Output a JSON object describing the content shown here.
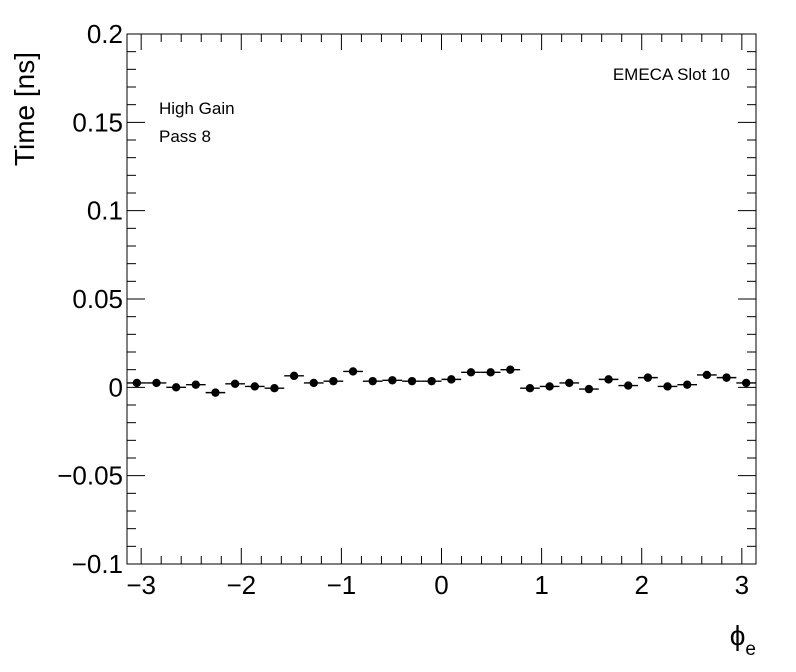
{
  "chart_data": {
    "type": "scatter",
    "ylabel": "Time [ns]",
    "xlabel": {
      "main": "ϕ",
      "sub": "e"
    },
    "xlim": [
      -3.1416,
      3.1416
    ],
    "ylim": [
      -0.1,
      0.2
    ],
    "xticks": [
      {
        "value": -3,
        "label": "−3"
      },
      {
        "value": -2,
        "label": "−2"
      },
      {
        "value": -1,
        "label": "−1"
      },
      {
        "value": 0,
        "label": "0"
      },
      {
        "value": 1,
        "label": "1"
      },
      {
        "value": 2,
        "label": "2"
      },
      {
        "value": 3,
        "label": "3"
      }
    ],
    "yticks": [
      {
        "value": -0.1,
        "label": "−0.1"
      },
      {
        "value": -0.05,
        "label": "−0.05"
      },
      {
        "value": 0,
        "label": "0"
      },
      {
        "value": 0.05,
        "label": "0.05"
      },
      {
        "value": 0.1,
        "label": "0.1"
      },
      {
        "value": 0.15,
        "label": "0.15"
      },
      {
        "value": 0.2,
        "label": "0.2"
      }
    ],
    "bin_count": 32,
    "values": [
      0.0025,
      0.0025,
      0.0,
      0.0015,
      -0.003,
      0.002,
      0.0005,
      -0.0005,
      0.0065,
      0.0025,
      0.0035,
      0.009,
      0.0035,
      0.004,
      0.0035,
      0.0035,
      0.0045,
      0.0085,
      0.0085,
      0.01,
      -0.0005,
      0.0005,
      0.0025,
      -0.001,
      0.0045,
      0.001,
      0.0055,
      0.0005,
      0.0015,
      0.007,
      0.0055,
      0.0025
    ],
    "grid": false,
    "annotations": {
      "top_right": "EMECA Slot 10",
      "line1": "High Gain",
      "line2": "Pass 8"
    },
    "marker_color": "#000000"
  }
}
